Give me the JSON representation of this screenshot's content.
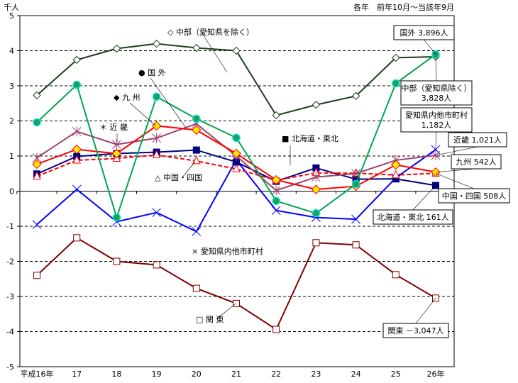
{
  "chart_data": {
    "type": "line",
    "unit": "千人",
    "note": "各年　前年10月～当該年9月",
    "x": [
      "平成16年",
      "17",
      "18",
      "19",
      "20",
      "21",
      "22",
      "23",
      "24",
      "25",
      "26年"
    ],
    "ylim": [
      -5,
      5
    ],
    "yticks": [
      "5",
      "4",
      "3",
      "2",
      "1",
      "0",
      "-1",
      "-2",
      "-3",
      "-4",
      "-5"
    ],
    "grid": "dashed horizontal",
    "series": [
      {
        "name": "中部（愛知県を除く）",
        "legend": "◇ 中部（愛知県を除く）",
        "color": "#1e3d1e",
        "marker": "diamond-open",
        "values": [
          2.73,
          3.74,
          4.06,
          4.2,
          4.08,
          4.0,
          2.16,
          2.46,
          2.71,
          3.8,
          3.828
        ],
        "callout": "中部（愛知県除く）\n3,828人"
      },
      {
        "name": "国外",
        "legend": "● 国 外",
        "color": "#00a550",
        "marker": "circle",
        "values": [
          1.96,
          3.03,
          -0.75,
          2.69,
          2.06,
          1.52,
          -0.28,
          -0.63,
          0.2,
          3.07,
          3.896
        ],
        "callout": "国外 3,896人"
      },
      {
        "name": "九州",
        "legend": "◆ 九 州",
        "color": "#ff0000",
        "marker": "diamond-yellow",
        "values": [
          0.77,
          1.19,
          1.07,
          1.86,
          1.74,
          1.07,
          0.32,
          0.05,
          0.14,
          0.75,
          0.542
        ],
        "callout": "九州 542人"
      },
      {
        "name": "近畿",
        "legend": "＊ 近 畿",
        "color": "#a0406e",
        "marker": "asterisk",
        "values": [
          0.95,
          1.7,
          1.33,
          1.51,
          1.92,
          1.0,
          0.02,
          0.4,
          0.5,
          0.88,
          1.021
        ],
        "callout": "近畿 1,021人"
      },
      {
        "name": "北海道・東北",
        "legend": "■ 北海道・東北",
        "color": "#000080",
        "marker": "square",
        "values": [
          0.49,
          0.99,
          1.07,
          1.11,
          1.17,
          0.83,
          0.28,
          0.66,
          0.34,
          0.35,
          0.161
        ],
        "callout": "北海道・東北 161人"
      },
      {
        "name": "中国・四国",
        "legend": "△ 中国・四国",
        "color": "#ff0000",
        "dashed": true,
        "marker": "triangle-open",
        "values": [
          0.42,
          0.88,
          0.93,
          1.03,
          0.86,
          0.63,
          0.31,
          0.52,
          0.51,
          0.46,
          0.508
        ],
        "callout": "中国・四国 508人"
      },
      {
        "name": "愛知県内他市町村",
        "legend": "× 愛知県内他市町村",
        "color": "#0000ff",
        "marker": "x",
        "values": [
          -0.95,
          0.05,
          -0.87,
          -0.61,
          -1.15,
          0.89,
          -0.55,
          -0.75,
          -0.8,
          0.38,
          1.182
        ],
        "callout": "愛知県内他市町村\n1,182人"
      },
      {
        "name": "関東",
        "legend": "□ 関 東",
        "color": "#800000",
        "marker": "square-open",
        "values": [
          -2.4,
          -1.33,
          -2.0,
          -2.1,
          -2.77,
          -3.2,
          -3.94,
          -1.47,
          -1.53,
          -2.38,
          -3.047
        ],
        "callout": "関東 －3,047人"
      }
    ]
  }
}
